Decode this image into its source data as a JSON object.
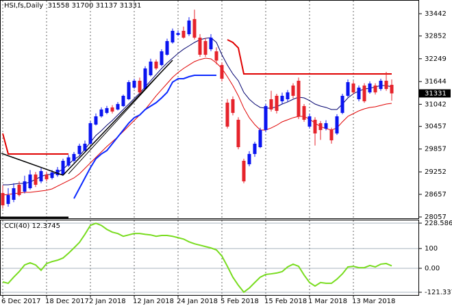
{
  "chart_data": [
    {
      "type": "candlestick",
      "title": "HSI,fs,Daily",
      "categories": [
        "6 Dec 2017",
        null,
        null,
        null,
        null,
        null,
        null,
        null,
        "18 Dec 2017",
        null,
        null,
        null,
        null,
        null,
        null,
        null,
        "2 Jan 2018",
        null,
        null,
        null,
        null,
        null,
        null,
        null,
        "12 Jan 2018",
        null,
        null,
        null,
        null,
        null,
        null,
        null,
        "24 Jan 2018",
        null,
        null,
        null,
        null,
        null,
        null,
        null,
        "5 Feb 2018",
        null,
        null,
        null,
        null,
        null,
        null,
        null,
        "15 Feb 2018",
        null,
        null,
        null,
        null,
        null,
        null,
        null,
        "1 Mar 2018",
        null,
        null,
        null,
        null,
        null,
        null,
        null,
        "13 Mar 2018",
        null,
        null,
        null,
        null,
        null,
        null,
        null
      ],
      "open": [
        28692,
        28402,
        28511,
        28910,
        28729,
        28819,
        29182,
        29001,
        29182,
        29091,
        29164,
        29182,
        29418,
        29545,
        29726,
        29816,
        29998,
        30505,
        30723,
        30814,
        30959,
        30904,
        30995,
        31176,
        31484,
        31666,
        31448,
        31811,
        32173,
        32083,
        32355,
        32681,
        32880,
        32989,
        32899,
        33300,
        32808,
        32717,
        32500,
        32445,
        32083,
        31086,
        31176,
        30632,
        29545,
        29454,
        29726,
        29907,
        30360,
        31176,
        31267,
        31122,
        31176,
        31539,
        31666,
        30995,
        30451,
        30632,
        30542,
        30397,
        30360,
        30270,
        30814,
        31267,
        31593,
        31176,
        31539,
        31358,
        31539,
        31448,
        31666,
        31558
      ],
      "high": [
        28900,
        28820,
        28950,
        29000,
        29150,
        29300,
        29250,
        29350,
        29260,
        29300,
        29380,
        29600,
        29700,
        29780,
        30000,
        30080,
        30600,
        30800,
        30960,
        31000,
        31020,
        31100,
        31300,
        31680,
        31720,
        31750,
        32050,
        32250,
        32230,
        32500,
        32780,
        33050,
        33000,
        33100,
        33350,
        33550,
        32900,
        32800,
        32900,
        32550,
        32150,
        31180,
        31250,
        30700,
        29600,
        29800,
        30050,
        30420,
        31050,
        31400,
        31320,
        31350,
        31420,
        31600,
        31750,
        31050,
        30800,
        30700,
        30600,
        30620,
        30420,
        30780,
        31320,
        31700,
        31660,
        31540,
        31600,
        31650,
        31600,
        31720,
        31900,
        31700
      ],
      "low": [
        28276,
        28330,
        28450,
        28600,
        28680,
        28780,
        28850,
        28950,
        29000,
        29050,
        29120,
        29150,
        29380,
        29500,
        29680,
        29790,
        29980,
        30480,
        30690,
        30780,
        30800,
        30880,
        30970,
        31150,
        31450,
        31300,
        31420,
        31780,
        31950,
        32050,
        32330,
        32650,
        32850,
        32780,
        32850,
        32760,
        32300,
        32300,
        32450,
        32100,
        31650,
        30400,
        30750,
        29850,
        28950,
        29400,
        29650,
        29880,
        30300,
        30850,
        30800,
        31050,
        31100,
        31200,
        30650,
        30580,
        30400,
        29950,
        30100,
        30350,
        30000,
        30230,
        30780,
        31230,
        31300,
        31120,
        31080,
        31320,
        31300,
        31400,
        31400,
        31137
      ],
      "close": [
        28366,
        28638,
        28819,
        28638,
        29001,
        29182,
        28910,
        29273,
        29055,
        29236,
        29309,
        29545,
        29636,
        29726,
        29943,
        29998,
        30542,
        30723,
        30904,
        30941,
        30850,
        31050,
        31267,
        31629,
        31666,
        31358,
        31992,
        32173,
        31992,
        32445,
        32717,
        32989,
        32930,
        32808,
        33261,
        32808,
        32355,
        32355,
        32808,
        32200,
        31720,
        30451,
        30814,
        29907,
        29001,
        29726,
        29998,
        30360,
        30995,
        30904,
        30868,
        31267,
        31358,
        31267,
        30723,
        30632,
        30723,
        30270,
        30360,
        30542,
        30088,
        30723,
        31267,
        31629,
        31358,
        31484,
        31122,
        31593,
        31358,
        31666,
        31448,
        31331
      ],
      "up_color": "#0a14f0",
      "down_color": "#e6232b",
      "series": [
        {
          "color": "#00006e",
          "width": 1,
          "values": [
            28910,
            28910,
            28928,
            28946,
            28946,
            28982,
            29055,
            29127,
            29182,
            29182,
            29236,
            29327,
            29454,
            29581,
            29671,
            29853,
            30034,
            30215,
            30342,
            30487,
            30614,
            30759,
            30904,
            31049,
            31194,
            31339,
            31502,
            31666,
            31829,
            31992,
            32137,
            32264,
            32391,
            32500,
            32590,
            32681,
            32753,
            32790,
            32808,
            32681,
            32355,
            32083,
            31847,
            31666,
            31357,
            31176,
            31049,
            30959,
            30940,
            30940,
            30977,
            31049,
            31104,
            31176,
            31231,
            31212,
            31140,
            31049,
            30995,
            30959,
            30904,
            30904,
            31049,
            31212,
            31321,
            31394,
            31448,
            31466,
            31502,
            31539,
            31539,
            31502
          ]
        },
        {
          "color": "#e00000",
          "width": 1,
          "values": [
            28638,
            28656,
            28674,
            28692,
            28710,
            28710,
            28729,
            28747,
            28765,
            28801,
            28874,
            28946,
            29019,
            29091,
            29200,
            29345,
            29490,
            29635,
            29780,
            29925,
            30052,
            30179,
            30324,
            30469,
            30614,
            30759,
            30904,
            31085,
            31267,
            31430,
            31593,
            31756,
            31883,
            31992,
            32083,
            32173,
            32228,
            32264,
            32246,
            32137,
            31992,
            31774,
            31539,
            31267,
            30941,
            30687,
            30505,
            30360,
            30360,
            30415,
            30487,
            30578,
            30632,
            30687,
            30723,
            30723,
            30650,
            30542,
            30451,
            30397,
            30360,
            30415,
            30578,
            30723,
            30795,
            30868,
            30922,
            30959,
            30977,
            31013,
            31049,
            31067
          ]
        },
        {
          "color": "#0a28ff",
          "width": 2,
          "values": [
            null,
            null,
            null,
            null,
            null,
            null,
            null,
            null,
            null,
            null,
            null,
            null,
            null,
            28547,
            28819,
            29091,
            29363,
            29599,
            29726,
            29816,
            29998,
            30179,
            30360,
            30542,
            30687,
            30759,
            30904,
            30995,
            31085,
            31212,
            31357,
            31629,
            31720,
            31720,
            31774,
            31811,
            31811,
            31811,
            31811,
            31811,
            null,
            null,
            null,
            null,
            null,
            null,
            null,
            null,
            null,
            null,
            null,
            null,
            null,
            null,
            null,
            null,
            null,
            null,
            null,
            null,
            null,
            null,
            null,
            null,
            null,
            null,
            null,
            null,
            null,
            null,
            null,
            null
          ]
        },
        {
          "color": "#e00000",
          "width": 2,
          "values": [
            30270,
            29726,
            29726,
            29726,
            29726,
            29726,
            29726,
            29726,
            29726,
            29726,
            29726,
            29726,
            29726,
            null,
            null,
            null,
            null,
            null,
            null,
            null,
            null,
            null,
            null,
            null,
            null,
            null,
            null,
            null,
            null,
            null,
            null,
            null,
            null,
            null,
            null,
            null,
            null,
            null,
            null,
            null,
            null,
            32753,
            32681,
            32536,
            31847,
            31847,
            31847,
            31847,
            31847,
            31847,
            31847,
            31847,
            31847,
            31847,
            31847,
            31847,
            31847,
            31847,
            31847,
            31847,
            31847,
            31847,
            31847,
            31847,
            31847,
            31847,
            31847,
            31847,
            31847,
            31847,
            31847,
            31847
          ]
        }
      ],
      "ylim": [
        28039,
        33805
      ],
      "yticks": [
        33442,
        32852,
        32249,
        31644,
        31042,
        30457,
        29857,
        29252,
        28657,
        28057
      ],
      "grid": true
    },
    {
      "type": "line",
      "title": "CCI(40)",
      "series": [
        {
          "color": "#78dc1e",
          "width": 2,
          "values": [
            -69,
            -76,
            -45,
            -17,
            17,
            28,
            17,
            -10,
            24,
            34,
            41,
            52,
            76,
            103,
            131,
            172,
            217,
            228,
            217,
            197,
            183,
            176,
            162,
            169,
            176,
            176,
            172,
            169,
            162,
            166,
            166,
            162,
            155,
            148,
            134,
            124,
            117,
            110,
            103,
            93,
            62,
            10,
            -45,
            -86,
            -121,
            -100,
            -72,
            -45,
            -31,
            -28,
            -24,
            -17,
            7,
            21,
            10,
            -34,
            -72,
            -90,
            -72,
            -76,
            -76,
            -55,
            -28,
            7,
            10,
            3,
            3,
            14,
            7,
            21,
            24,
            12.3745
          ]
        }
      ],
      "ylim": [
        -121.337,
        228.5862
      ],
      "yticks": [
        228.5862,
        100,
        {
          "value": 0,
          "label": "0.00"
        },
        -121.337
      ]
    }
  ]
}
